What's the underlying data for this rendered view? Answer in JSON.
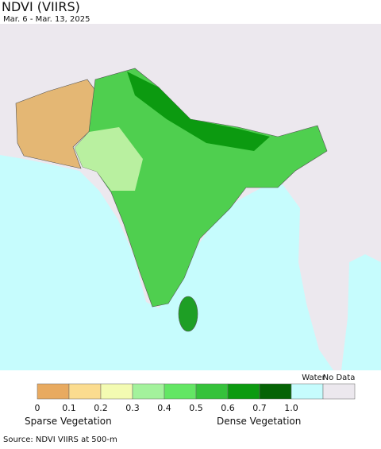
{
  "title": "NDVI (VIIRS)",
  "subtitle": "Mar. 6 - Mar. 13, 2025",
  "legend": {
    "classes": [
      {
        "color": "#e8aa60"
      },
      {
        "color": "#fbdc8f"
      },
      {
        "color": "#f3fbb2"
      },
      {
        "color": "#a3f29c"
      },
      {
        "color": "#63e664"
      },
      {
        "color": "#35c23b"
      },
      {
        "color": "#0c9a10"
      },
      {
        "color": "#056305"
      }
    ],
    "ticks": [
      0,
      0.1,
      0.2,
      0.3,
      0.4,
      0.5,
      0.6,
      0.7,
      {
        "value": 1,
        "label": "1.0"
      }
    ],
    "water": {
      "label": "Water",
      "color": "#c6fcfd"
    },
    "no_data": {
      "label": "No Data",
      "color": "#ece8ee"
    },
    "low_label": "Sparse Vegetation",
    "high_label": "Dense Vegetation"
  },
  "source": "Source: NDVI VIIRS at 500-m"
}
